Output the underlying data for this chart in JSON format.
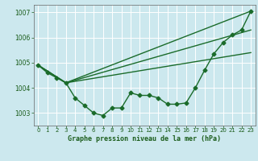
{
  "title": "Graphe pression niveau de la mer (hPa)",
  "background_color": "#cce8ee",
  "grid_color": "#ffffff",
  "line_color": "#1a6b2a",
  "text_color": "#1a5c1a",
  "xlim": [
    -0.5,
    23.5
  ],
  "ylim": [
    1002.5,
    1007.3
  ],
  "yticks": [
    1003,
    1004,
    1005,
    1006,
    1007
  ],
  "xticks": [
    0,
    1,
    2,
    3,
    4,
    5,
    6,
    7,
    8,
    9,
    10,
    11,
    12,
    13,
    14,
    15,
    16,
    17,
    18,
    19,
    20,
    21,
    22,
    23
  ],
  "series1_x": [
    0,
    1,
    2,
    3,
    4,
    5,
    6,
    7,
    8,
    9,
    10,
    11,
    12,
    13,
    14,
    15,
    16,
    17,
    18,
    19,
    20,
    21,
    22,
    23
  ],
  "series1_y": [
    1004.9,
    1004.6,
    1004.4,
    1004.2,
    1003.6,
    1003.3,
    1003.0,
    1002.9,
    1003.2,
    1003.2,
    1003.8,
    1003.7,
    1003.7,
    1003.6,
    1003.35,
    1003.35,
    1003.4,
    1004.0,
    1004.7,
    1005.35,
    1005.8,
    1006.1,
    1006.3,
    1007.05
  ],
  "series2_x": [
    0,
    3,
    23
  ],
  "series2_y": [
    1004.9,
    1004.2,
    1007.05
  ],
  "series3_x": [
    0,
    3,
    23
  ],
  "series3_y": [
    1004.9,
    1004.2,
    1006.3
  ],
  "series4_x": [
    0,
    3,
    23
  ],
  "series4_y": [
    1004.9,
    1004.2,
    1005.4
  ],
  "marker": "D",
  "marker_size": 2.5,
  "linewidth": 1.0
}
